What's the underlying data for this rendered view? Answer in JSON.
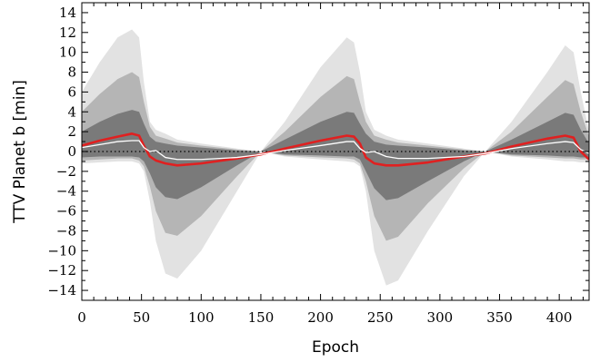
{
  "chart_data": {
    "type": "area",
    "title": "",
    "xlabel": "Epoch",
    "ylabel": "TTV Planet b [min]",
    "xlim": [
      0,
      425
    ],
    "ylim": [
      -15,
      15
    ],
    "x_ticks": [
      0,
      50,
      100,
      150,
      200,
      250,
      300,
      350,
      400
    ],
    "y_ticks": [
      -14,
      -12,
      -10,
      -8,
      -6,
      -4,
      -2,
      0,
      2,
      4,
      6,
      8,
      10,
      12,
      14
    ],
    "grid": false,
    "legend": "none",
    "zero_line": {
      "y": 0,
      "style": "dotted",
      "color": "#000000"
    },
    "x": [
      0,
      15,
      30,
      42,
      48,
      52,
      57,
      62,
      70,
      80,
      100,
      130,
      150,
      170,
      200,
      222,
      228,
      233,
      238,
      245,
      255,
      265,
      290,
      320,
      338,
      360,
      390,
      405,
      412,
      418,
      425
    ],
    "bands": [
      {
        "color": "#e2e2e2",
        "upper": [
          6,
          9,
          11.5,
          12.3,
          11.5,
          7,
          3,
          2.2,
          1.8,
          1.2,
          0.8,
          0.3,
          0,
          3,
          8.5,
          11.5,
          11,
          8,
          4,
          2.2,
          1.6,
          1.2,
          0.8,
          0.3,
          0,
          3,
          8,
          10.7,
          10,
          6,
          2
        ],
        "lower": [
          -1.2,
          -1.1,
          -1.0,
          -1.0,
          -1.2,
          -2,
          -5,
          -9,
          -12.3,
          -12.8,
          -10,
          -4,
          0,
          -0.5,
          -0.8,
          -1.0,
          -1.1,
          -1.5,
          -4,
          -10,
          -13.5,
          -13,
          -8,
          -2.5,
          0,
          -0.5,
          -0.8,
          -1.0,
          -1.0,
          -1.1,
          -1.1
        ]
      },
      {
        "color": "#b5b5b5",
        "upper": [
          4,
          5.8,
          7.3,
          8.0,
          7.5,
          5,
          2.5,
          1.6,
          1.3,
          0.9,
          0.6,
          0.2,
          0,
          2,
          5.5,
          7.6,
          7.3,
          5,
          3,
          1.6,
          1.2,
          0.9,
          0.6,
          0.2,
          0,
          2,
          5.5,
          7.2,
          6.8,
          4,
          1.5
        ],
        "lower": [
          -0.9,
          -0.8,
          -0.7,
          -0.7,
          -0.9,
          -1.5,
          -3.5,
          -6,
          -8.2,
          -8.5,
          -6.5,
          -2.5,
          0,
          -0.4,
          -0.6,
          -0.7,
          -0.8,
          -1.2,
          -3,
          -6.5,
          -9,
          -8.6,
          -5.2,
          -1.7,
          0,
          -0.4,
          -0.6,
          -0.7,
          -0.7,
          -0.8,
          -0.8
        ]
      },
      {
        "color": "#7a7a7a",
        "upper": [
          2,
          3,
          3.8,
          4.2,
          4.0,
          2.8,
          1.5,
          1.0,
          0.8,
          0.6,
          0.4,
          0.1,
          0,
          1.2,
          3,
          4.0,
          3.9,
          2.8,
          1.8,
          1.0,
          0.7,
          0.6,
          0.4,
          0.1,
          0,
          1.2,
          3,
          3.9,
          3.7,
          2.2,
          0.8
        ],
        "lower": [
          -0.6,
          -0.5,
          -0.5,
          -0.5,
          -0.6,
          -1.0,
          -2.2,
          -3.6,
          -4.6,
          -4.8,
          -3.6,
          -1.4,
          0,
          -0.3,
          -0.4,
          -0.5,
          -0.5,
          -0.8,
          -2.0,
          -3.7,
          -4.9,
          -4.7,
          -3.0,
          -1.0,
          0,
          -0.3,
          -0.4,
          -0.5,
          -0.5,
          -0.6,
          -0.6
        ]
      }
    ],
    "series": [
      {
        "color": "#e02020",
        "values": [
          0.6,
          1.1,
          1.5,
          1.8,
          1.6,
          0.6,
          -0.5,
          -0.9,
          -1.2,
          -1.4,
          -1.2,
          -0.7,
          -0.3,
          0.3,
          1.1,
          1.6,
          1.5,
          0.8,
          -0.6,
          -1.2,
          -1.4,
          -1.4,
          -1.1,
          -0.5,
          -0.2,
          0.5,
          1.3,
          1.6,
          1.4,
          0.0,
          -0.8
        ]
      },
      {
        "color": "#ffffff",
        "values": [
          0.4,
          0.7,
          1.0,
          1.1,
          1.1,
          0.4,
          0.0,
          0.1,
          -0.6,
          -0.8,
          -0.8,
          -0.6,
          -0.3,
          0.1,
          0.6,
          1.0,
          1.0,
          0.3,
          -0.1,
          0.0,
          -0.5,
          -0.7,
          -0.7,
          -0.5,
          -0.2,
          0.3,
          0.8,
          1.0,
          0.9,
          0.2,
          -0.2
        ]
      }
    ]
  }
}
